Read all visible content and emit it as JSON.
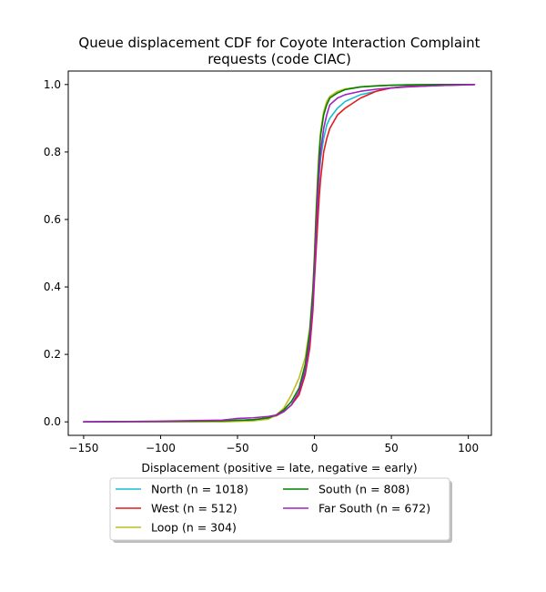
{
  "chart_data": {
    "type": "line",
    "title_lines": [
      "Queue displacement CDF for Coyote Interaction Complaint",
      "requests (code CIAC)"
    ],
    "xlabel": "Displacement (positive = late, negative = early)",
    "ylabel": "",
    "xlim": [
      -160,
      115
    ],
    "ylim": [
      -0.04,
      1.04
    ],
    "xticks": [
      -150,
      -100,
      -50,
      0,
      50,
      100
    ],
    "yticks": [
      0.0,
      0.2,
      0.4,
      0.6,
      0.8,
      1.0
    ],
    "xtick_labels": [
      "−150",
      "−100",
      "−50",
      "0",
      "50",
      "100"
    ],
    "ytick_labels": [
      "0.0",
      "0.2",
      "0.4",
      "0.6",
      "0.8",
      "1.0"
    ],
    "grid": false,
    "legend": {
      "placement": "below-center",
      "columns": 2
    },
    "series": [
      {
        "name": "North (n = 1018)",
        "color": "#17becf",
        "x": [
          -150,
          -100,
          -60,
          -40,
          -30,
          -25,
          -20,
          -15,
          -10,
          -6,
          -3,
          -1,
          0,
          1,
          2,
          3,
          4,
          6,
          8,
          10,
          15,
          20,
          30,
          40,
          50,
          60,
          80,
          104
        ],
        "y": [
          0.0,
          0.001,
          0.003,
          0.006,
          0.012,
          0.018,
          0.03,
          0.05,
          0.09,
          0.16,
          0.26,
          0.37,
          0.45,
          0.55,
          0.64,
          0.72,
          0.78,
          0.84,
          0.88,
          0.9,
          0.93,
          0.95,
          0.97,
          0.98,
          0.99,
          0.995,
          0.998,
          1.0
        ]
      },
      {
        "name": "West (n = 512)",
        "color": "#e31a1c",
        "x": [
          -150,
          -100,
          -60,
          -40,
          -30,
          -25,
          -20,
          -15,
          -10,
          -6,
          -3,
          -1,
          0,
          1,
          2,
          3,
          4,
          6,
          8,
          10,
          15,
          20,
          30,
          40,
          50,
          60,
          80,
          104
        ],
        "y": [
          0.0,
          0.001,
          0.003,
          0.006,
          0.012,
          0.018,
          0.03,
          0.05,
          0.08,
          0.14,
          0.22,
          0.33,
          0.42,
          0.5,
          0.58,
          0.66,
          0.72,
          0.8,
          0.84,
          0.87,
          0.91,
          0.93,
          0.96,
          0.98,
          0.99,
          0.994,
          0.997,
          1.0
        ]
      },
      {
        "name": "Loop (n = 304)",
        "color": "#bcbd22",
        "x": [
          -150,
          -100,
          -60,
          -40,
          -30,
          -25,
          -20,
          -15,
          -10,
          -6,
          -3,
          -1,
          0,
          1,
          2,
          3,
          4,
          6,
          8,
          10,
          15,
          20,
          30,
          40,
          50,
          60,
          80,
          104
        ],
        "y": [
          0.0,
          0.0,
          0.0,
          0.003,
          0.008,
          0.02,
          0.04,
          0.08,
          0.13,
          0.19,
          0.28,
          0.4,
          0.5,
          0.62,
          0.72,
          0.8,
          0.86,
          0.92,
          0.95,
          0.965,
          0.98,
          0.987,
          0.993,
          0.996,
          0.998,
          0.999,
          1.0,
          1.0
        ]
      },
      {
        "name": "South (n = 808)",
        "color": "#008000",
        "x": [
          -150,
          -100,
          -60,
          -40,
          -30,
          -25,
          -20,
          -15,
          -10,
          -6,
          -3,
          -1,
          0,
          1,
          2,
          3,
          4,
          6,
          8,
          10,
          15,
          20,
          30,
          40,
          50,
          60,
          80,
          104
        ],
        "y": [
          0.0,
          0.001,
          0.003,
          0.006,
          0.012,
          0.02,
          0.035,
          0.06,
          0.1,
          0.17,
          0.27,
          0.39,
          0.48,
          0.6,
          0.7,
          0.79,
          0.85,
          0.91,
          0.94,
          0.96,
          0.975,
          0.985,
          0.993,
          0.996,
          0.998,
          0.999,
          1.0,
          1.0
        ]
      },
      {
        "name": "Far South (n = 672)",
        "color": "#a020c0",
        "x": [
          -150,
          -100,
          -60,
          -50,
          -40,
          -30,
          -25,
          -20,
          -15,
          -10,
          -6,
          -3,
          -1,
          0,
          1,
          2,
          3,
          4,
          6,
          8,
          10,
          15,
          20,
          30,
          40,
          50,
          60,
          80,
          104
        ],
        "y": [
          0.0,
          0.002,
          0.005,
          0.01,
          0.012,
          0.016,
          0.02,
          0.03,
          0.05,
          0.09,
          0.15,
          0.24,
          0.35,
          0.44,
          0.55,
          0.65,
          0.74,
          0.8,
          0.87,
          0.91,
          0.94,
          0.96,
          0.97,
          0.98,
          0.986,
          0.99,
          0.993,
          0.997,
          1.0
        ]
      }
    ]
  }
}
